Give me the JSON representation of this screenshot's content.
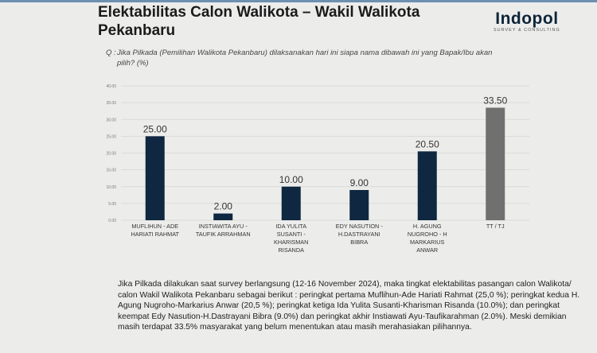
{
  "header": {
    "title": "Elektabilitas Calon Walikota – Wakil Walikota Pekanbaru",
    "logo_text": "Indopol",
    "logo_subtitle": "SURVEY & CONSULTING"
  },
  "question": {
    "label": "Q :",
    "text": "Jika Pilkada (Pemilihan Walikota Pekanbaru) dilaksanakan hari ini siapa nama dibawah ini yang Bapak/Ibu akan pilih? (%)"
  },
  "chart_data": {
    "type": "bar",
    "title": "",
    "xlabel": "",
    "ylabel": "",
    "ylim": [
      0,
      40
    ],
    "yticks": [
      "0.00",
      "5.00",
      "10.00",
      "15.00",
      "20.00",
      "25.00",
      "30.00",
      "35.00",
      "40.00"
    ],
    "grid": true,
    "categories": [
      [
        "MUFLIHUN - ADE",
        "HARIATI RAHMAT"
      ],
      [
        "INSTIAWITA AYU -",
        "TAUFIK ARRAHMAN"
      ],
      [
        "IDA YULITA",
        "SUSANTI -",
        "KHARISMAN",
        "RISANDA"
      ],
      [
        "EDY NASUTION -",
        "H.DASTRAYANI",
        "BIBRA"
      ],
      [
        "H. AGUNG",
        "NUGROHO - H",
        "MARKARIUS",
        "ANWAR"
      ],
      [
        "TT / TJ"
      ]
    ],
    "values": [
      25.0,
      2.0,
      10.0,
      9.0,
      20.5,
      33.5
    ],
    "data_labels": [
      "25.00",
      "2.00",
      "10.00",
      "9.00",
      "20.50",
      "33.50"
    ],
    "colors": [
      "#0f2740",
      "#0f2740",
      "#0f2740",
      "#0f2740",
      "#0f2740",
      "#707070"
    ]
  },
  "summary": "Jika Pilkada dilakukan saat survey berlangsung (12-16 November 2024), maka tingkat elektabilitas pasangan calon Walikota/ calon Wakil Walikota Pekanbaru sebagai berikut : peringkat pertama Muflihun-Ade Hariati Rahmat (25,0 %); peringkat kedua H. Agung Nugroho-Markarius Anwar (20,5 %); peringkat ketiga Ida Yulita Susanti-Kharisman Risanda (10.0%); dan peringkat keempat Edy Nasution-H.Dastrayani Bibra (9.0%) dan peringkat akhir Instiawati Ayu-Taufikarahman (2.0%). Meski demikian masih terdapat 33.5% masyarakat yang belum menentukan atau masih merahasiakan pilihannya."
}
